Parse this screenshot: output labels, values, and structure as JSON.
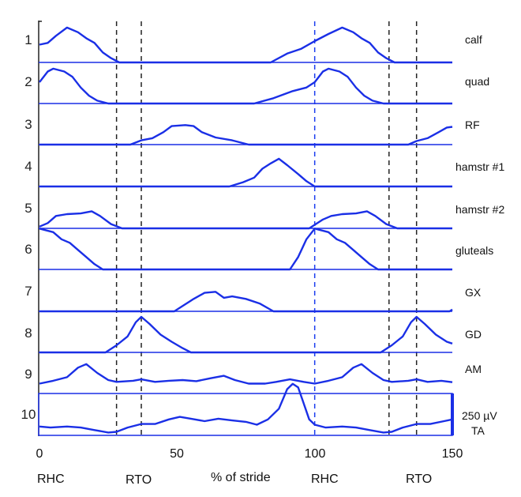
{
  "chart_data": {
    "type": "line",
    "title": "",
    "xlabel": "% of stride",
    "ylabel": "",
    "xlim": [
      0,
      150
    ],
    "x_ticks": [
      "0",
      "50",
      "100",
      "150"
    ],
    "x_tick_values": [
      0,
      50,
      100,
      150
    ],
    "amplitude_units": "relative (scale bar 250 µV)",
    "scale_bar_label": "250 µV",
    "event_labels": [
      {
        "label": "RHC",
        "x": 0
      },
      {
        "label": "RTO",
        "x": 37
      },
      {
        "label": "RHC",
        "x": 100
      },
      {
        "label": "RTO",
        "x": 137
      }
    ],
    "event_lines": [
      {
        "x": 28,
        "color": "#222222"
      },
      {
        "x": 37,
        "color": "#222222"
      },
      {
        "x": 100,
        "color": "#1a3cf0"
      },
      {
        "x": 127,
        "color": "#222222"
      },
      {
        "x": 137,
        "color": "#222222"
      }
    ],
    "trace_color": "#1a2fe6",
    "series": [
      {
        "row": "1",
        "name": "calf",
        "baseline": true,
        "points": [
          [
            0,
            0.5
          ],
          [
            3,
            0.55
          ],
          [
            6,
            0.75
          ],
          [
            10,
            0.98
          ],
          [
            14,
            0.85
          ],
          [
            17,
            0.68
          ],
          [
            20,
            0.55
          ],
          [
            23,
            0.28
          ],
          [
            26,
            0.12
          ],
          [
            29,
            0
          ],
          [
            84,
            0
          ],
          [
            90,
            0.25
          ],
          [
            95,
            0.38
          ],
          [
            100,
            0.6
          ],
          [
            105,
            0.8
          ],
          [
            110,
            0.98
          ],
          [
            114,
            0.85
          ],
          [
            117,
            0.68
          ],
          [
            120,
            0.55
          ],
          [
            123,
            0.28
          ],
          [
            126,
            0.12
          ],
          [
            129,
            0
          ],
          [
            150,
            0
          ]
        ]
      },
      {
        "row": "2",
        "name": "quad",
        "baseline": true,
        "points": [
          [
            0,
            0.6
          ],
          [
            3,
            0.9
          ],
          [
            5,
            0.98
          ],
          [
            9,
            0.9
          ],
          [
            12,
            0.75
          ],
          [
            15,
            0.45
          ],
          [
            18,
            0.22
          ],
          [
            21,
            0.08
          ],
          [
            25,
            0
          ],
          [
            78,
            0
          ],
          [
            85,
            0.15
          ],
          [
            92,
            0.35
          ],
          [
            97,
            0.45
          ],
          [
            100,
            0.6
          ],
          [
            103,
            0.9
          ],
          [
            105,
            0.98
          ],
          [
            109,
            0.9
          ],
          [
            112,
            0.75
          ],
          [
            115,
            0.45
          ],
          [
            118,
            0.22
          ],
          [
            121,
            0.08
          ],
          [
            125,
            0
          ],
          [
            150,
            0
          ]
        ]
      },
      {
        "row": "3",
        "name": "RF",
        "baseline": true,
        "points": [
          [
            0,
            0
          ],
          [
            33,
            0
          ],
          [
            37,
            0.12
          ],
          [
            41,
            0.18
          ],
          [
            45,
            0.35
          ],
          [
            48,
            0.52
          ],
          [
            53,
            0.55
          ],
          [
            56,
            0.52
          ],
          [
            59,
            0.35
          ],
          [
            64,
            0.2
          ],
          [
            70,
            0.12
          ],
          [
            76,
            0
          ],
          [
            134,
            0
          ],
          [
            137,
            0.1
          ],
          [
            141,
            0.18
          ],
          [
            145,
            0.35
          ],
          [
            148,
            0.48
          ],
          [
            150,
            0.5
          ]
        ]
      },
      {
        "row": "4",
        "name": "hamstr #1",
        "baseline": true,
        "points": [
          [
            0,
            0
          ],
          [
            69,
            0
          ],
          [
            74,
            0.12
          ],
          [
            78,
            0.25
          ],
          [
            81,
            0.5
          ],
          [
            84,
            0.65
          ],
          [
            87,
            0.78
          ],
          [
            90,
            0.6
          ],
          [
            94,
            0.35
          ],
          [
            97,
            0.15
          ],
          [
            100,
            0
          ],
          [
            150,
            0
          ]
        ]
      },
      {
        "row": "5",
        "name": "hamstr #2",
        "baseline": true,
        "points": [
          [
            0,
            0.05
          ],
          [
            3,
            0.15
          ],
          [
            6,
            0.35
          ],
          [
            10,
            0.4
          ],
          [
            15,
            0.42
          ],
          [
            19,
            0.48
          ],
          [
            22,
            0.35
          ],
          [
            26,
            0.12
          ],
          [
            30,
            0
          ],
          [
            98,
            0
          ],
          [
            100,
            0.1
          ],
          [
            103,
            0.25
          ],
          [
            106,
            0.35
          ],
          [
            110,
            0.4
          ],
          [
            115,
            0.42
          ],
          [
            119,
            0.48
          ],
          [
            122,
            0.35
          ],
          [
            126,
            0.12
          ],
          [
            130,
            0
          ],
          [
            150,
            0
          ]
        ]
      },
      {
        "row": "6",
        "name": "gluteals",
        "baseline": true,
        "points": [
          [
            0,
            1.15
          ],
          [
            5,
            1.05
          ],
          [
            8,
            0.85
          ],
          [
            11,
            0.75
          ],
          [
            14,
            0.55
          ],
          [
            17,
            0.35
          ],
          [
            20,
            0.15
          ],
          [
            23,
            0
          ],
          [
            91,
            0
          ],
          [
            94,
            0.35
          ],
          [
            97,
            0.85
          ],
          [
            100,
            1.15
          ],
          [
            105,
            1.05
          ],
          [
            108,
            0.85
          ],
          [
            111,
            0.75
          ],
          [
            114,
            0.55
          ],
          [
            117,
            0.35
          ],
          [
            120,
            0.15
          ],
          [
            123,
            0
          ],
          [
            150,
            0
          ]
        ]
      },
      {
        "row": "7",
        "name": "GX",
        "baseline": true,
        "points": [
          [
            0,
            0
          ],
          [
            49,
            0
          ],
          [
            52,
            0.15
          ],
          [
            56,
            0.35
          ],
          [
            60,
            0.52
          ],
          [
            64,
            0.55
          ],
          [
            67,
            0.38
          ],
          [
            70,
            0.42
          ],
          [
            75,
            0.35
          ],
          [
            80,
            0.22
          ],
          [
            85,
            0
          ],
          [
            149,
            0
          ],
          [
            150,
            0.05
          ]
        ]
      },
      {
        "row": "8",
        "name": "GD",
        "baseline": true,
        "points": [
          [
            0,
            0
          ],
          [
            24,
            0
          ],
          [
            28,
            0.2
          ],
          [
            32,
            0.45
          ],
          [
            35,
            0.85
          ],
          [
            37,
            1.0
          ],
          [
            40,
            0.8
          ],
          [
            44,
            0.5
          ],
          [
            48,
            0.3
          ],
          [
            52,
            0.12
          ],
          [
            55,
            0
          ],
          [
            124,
            0
          ],
          [
            128,
            0.2
          ],
          [
            132,
            0.45
          ],
          [
            135,
            0.85
          ],
          [
            137,
            1.0
          ],
          [
            140,
            0.8
          ],
          [
            144,
            0.5
          ],
          [
            148,
            0.3
          ],
          [
            150,
            0.25
          ]
        ]
      },
      {
        "row": "9",
        "name": "AM",
        "baseline": false,
        "points": [
          [
            0,
            0.1
          ],
          [
            5,
            0.18
          ],
          [
            10,
            0.28
          ],
          [
            14,
            0.55
          ],
          [
            17,
            0.65
          ],
          [
            21,
            0.4
          ],
          [
            25,
            0.2
          ],
          [
            28,
            0.15
          ],
          [
            34,
            0.18
          ],
          [
            37,
            0.22
          ],
          [
            42,
            0.15
          ],
          [
            47,
            0.18
          ],
          [
            52,
            0.2
          ],
          [
            57,
            0.17
          ],
          [
            62,
            0.25
          ],
          [
            67,
            0.32
          ],
          [
            71,
            0.2
          ],
          [
            76,
            0.1
          ],
          [
            82,
            0.1
          ],
          [
            86,
            0.15
          ],
          [
            91,
            0.22
          ],
          [
            96,
            0.15
          ],
          [
            100,
            0.1
          ],
          [
            105,
            0.18
          ],
          [
            110,
            0.28
          ],
          [
            114,
            0.55
          ],
          [
            117,
            0.65
          ],
          [
            121,
            0.4
          ],
          [
            125,
            0.2
          ],
          [
            128,
            0.15
          ],
          [
            134,
            0.18
          ],
          [
            137,
            0.22
          ],
          [
            141,
            0.15
          ],
          [
            146,
            0.18
          ],
          [
            150,
            0.14
          ]
        ]
      },
      {
        "row": "10",
        "name": "TA",
        "baseline": false,
        "points": [
          [
            0,
            0.25
          ],
          [
            4,
            0.22
          ],
          [
            10,
            0.25
          ],
          [
            15,
            0.22
          ],
          [
            20,
            0.15
          ],
          [
            25,
            0.08
          ],
          [
            28,
            0.1
          ],
          [
            32,
            0.22
          ],
          [
            37,
            0.32
          ],
          [
            42,
            0.32
          ],
          [
            47,
            0.45
          ],
          [
            51,
            0.52
          ],
          [
            55,
            0.47
          ],
          [
            60,
            0.4
          ],
          [
            65,
            0.47
          ],
          [
            70,
            0.42
          ],
          [
            75,
            0.38
          ],
          [
            79,
            0.3
          ],
          [
            83,
            0.45
          ],
          [
            87,
            0.75
          ],
          [
            90,
            1.3
          ],
          [
            92,
            1.45
          ],
          [
            94,
            1.35
          ],
          [
            96,
            0.9
          ],
          [
            98,
            0.45
          ],
          [
            100,
            0.3
          ],
          [
            104,
            0.22
          ],
          [
            110,
            0.25
          ],
          [
            115,
            0.22
          ],
          [
            120,
            0.15
          ],
          [
            125,
            0.08
          ],
          [
            128,
            0.1
          ],
          [
            132,
            0.22
          ],
          [
            137,
            0.32
          ],
          [
            142,
            0.32
          ],
          [
            147,
            0.4
          ],
          [
            150,
            0.45
          ]
        ]
      }
    ]
  }
}
